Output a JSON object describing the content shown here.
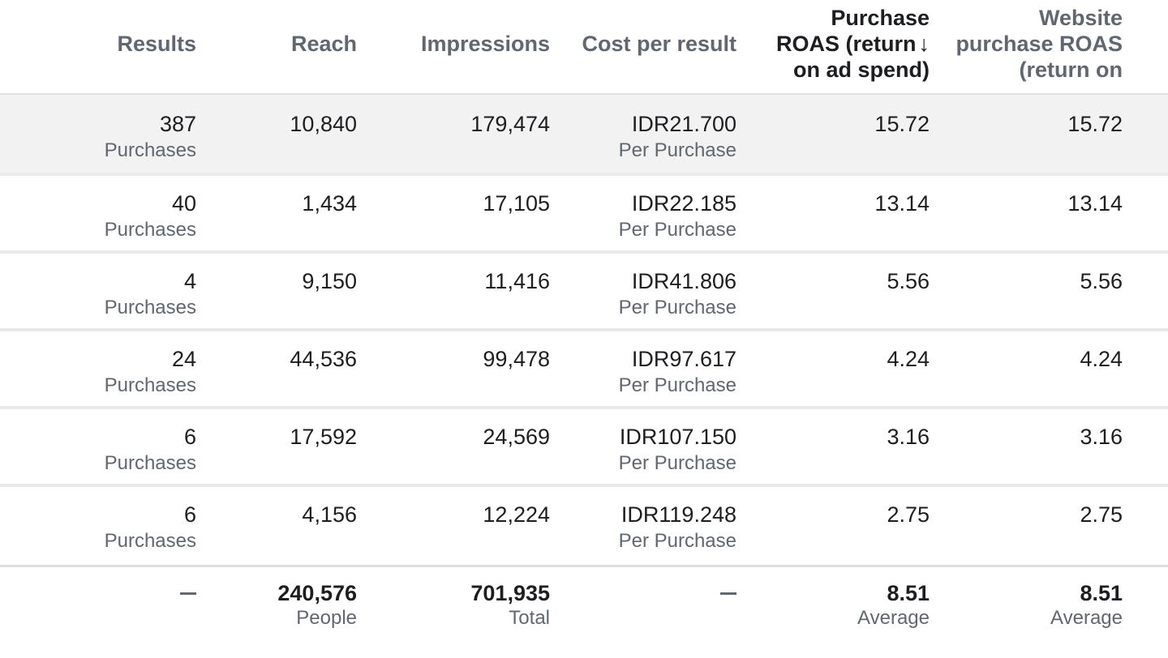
{
  "columns": {
    "results": "Results",
    "reach": "Reach",
    "impressions": "Impressions",
    "cost_per_result": "Cost per result",
    "purchase_roas": [
      "Purchase",
      "ROAS (return",
      "on ad spend)"
    ],
    "website_purchase_roas": [
      "Website",
      "purchase ROAS",
      "(return on"
    ]
  },
  "sort_icon": "↓",
  "rows": [
    {
      "results": "387",
      "results_unit": "Purchases",
      "reach": "10,840",
      "impressions": "179,474",
      "cost": "IDR21.700",
      "cost_unit": "Per Purchase",
      "roas": "15.72",
      "web_roas": "15.72"
    },
    {
      "results": "40",
      "results_unit": "Purchases",
      "reach": "1,434",
      "impressions": "17,105",
      "cost": "IDR22.185",
      "cost_unit": "Per Purchase",
      "roas": "13.14",
      "web_roas": "13.14"
    },
    {
      "results": "4",
      "results_unit": "Purchases",
      "reach": "9,150",
      "impressions": "11,416",
      "cost": "IDR41.806",
      "cost_unit": "Per Purchase",
      "roas": "5.56",
      "web_roas": "5.56"
    },
    {
      "results": "24",
      "results_unit": "Purchases",
      "reach": "44,536",
      "impressions": "99,478",
      "cost": "IDR97.617",
      "cost_unit": "Per Purchase",
      "roas": "4.24",
      "web_roas": "4.24"
    },
    {
      "results": "6",
      "results_unit": "Purchases",
      "reach": "17,592",
      "impressions": "24,569",
      "cost": "IDR107.150",
      "cost_unit": "Per Purchase",
      "roas": "3.16",
      "web_roas": "3.16"
    },
    {
      "results": "6",
      "results_unit": "Purchases",
      "reach": "4,156",
      "impressions": "12,224",
      "cost": "IDR119.248",
      "cost_unit": "Per Purchase",
      "roas": "2.75",
      "web_roas": "2.75"
    }
  ],
  "totals": {
    "reach": "240,576",
    "reach_unit": "People",
    "impressions": "701,935",
    "impressions_unit": "Total",
    "roas": "8.51",
    "roas_unit": "Average",
    "web_roas": "8.51",
    "web_roas_unit": "Average"
  },
  "colors": {
    "header_text": "#606770",
    "active_header_text": "#1c1e21",
    "highlight_row": "#f2f2f2",
    "row_divider": "#e9eaec"
  }
}
